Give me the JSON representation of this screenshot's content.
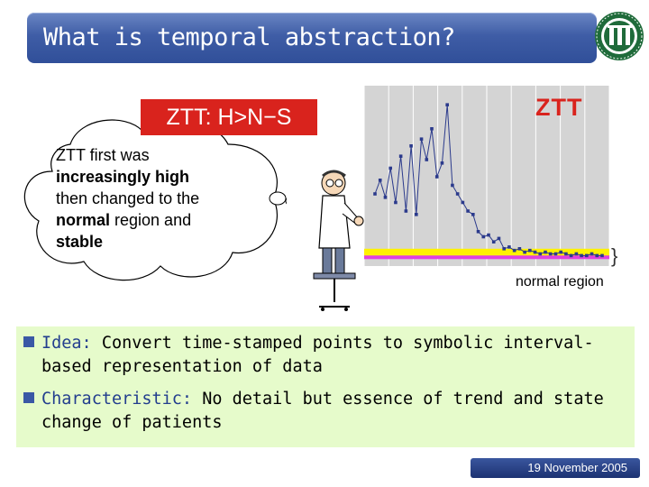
{
  "title": "What is temporal abstraction?",
  "logo": {
    "icon": "university-seal-icon"
  },
  "ztt_box": {
    "label": "ZTT: H>N−S"
  },
  "thought_bubble": {
    "lines": [
      {
        "plain": "ZTT first was",
        "bold": ""
      },
      {
        "plain": "",
        "bold": "increasingly high"
      },
      {
        "plain": "then changed to the",
        "bold": ""
      },
      {
        "bold": "normal",
        "plain": " region and"
      },
      {
        "plain": "",
        "bold": "stable"
      }
    ]
  },
  "chart": {
    "series_label": "ZTT",
    "normal_label": "normal region",
    "brace_glyph": "}"
  },
  "chart_data": {
    "type": "line",
    "title": "",
    "series": [
      {
        "name": "ZTT",
        "values": [
          40,
          48,
          38,
          55,
          35,
          62,
          30,
          68,
          28,
          72,
          60,
          78,
          50,
          58,
          92,
          45,
          40,
          35,
          30,
          28,
          18,
          15,
          16,
          12,
          14,
          8,
          9,
          7,
          8,
          6,
          7,
          6,
          5,
          6,
          5,
          5,
          6,
          5,
          4,
          5,
          4,
          4,
          5,
          4,
          4
        ]
      }
    ],
    "ylim": [
      0,
      100
    ],
    "normal_band": [
      3,
      8
    ]
  },
  "idea_box": {
    "bullets": [
      {
        "keyword": "Idea:",
        "text": " Convert time-stamped points to symbolic interval-",
        "cont": "based representation of data"
      },
      {
        "keyword": "Characteristic:",
        "text": " No detail but essence of trend and state",
        "cont": "change of patients"
      }
    ]
  },
  "footer": {
    "date": "19 November 2005"
  },
  "colors": {
    "title_bar": "#3f5da6",
    "accent_red": "#d9231d",
    "idea_bg": "#e6fbcb",
    "band_yellow": "#fff200",
    "band_magenta": "#e040e0",
    "series": "#2b3a8c"
  }
}
